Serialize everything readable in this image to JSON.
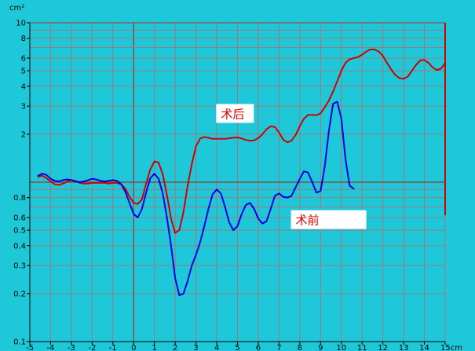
{
  "chart_data": {
    "type": "line",
    "yscale": "log",
    "xlim": [
      -5,
      15
    ],
    "ylim": [
      0.1,
      10
    ],
    "grid": true,
    "xlabel": "",
    "ylabel": "",
    "x_unit": "cm",
    "y_unit": "cm²",
    "xtick_labels": [
      "-5",
      "-4",
      "-3",
      "-2",
      "-1",
      "0",
      "1",
      "2",
      "3",
      "4",
      "5",
      "6",
      "7",
      "8",
      "9",
      "10",
      "11",
      "12",
      "13",
      "14",
      "15cm"
    ],
    "ytick_labels": [
      "0.1",
      "0.2",
      "0.3",
      "0.4",
      "0.5",
      "0.6",
      "0.8",
      "2",
      "3",
      "4",
      "5",
      "6",
      "8",
      "10"
    ],
    "ytick_values": [
      0.1,
      0.2,
      0.3,
      0.4,
      0.5,
      0.6,
      0.8,
      2,
      3,
      4,
      5,
      6,
      8,
      10
    ],
    "series": [
      {
        "name": "术后",
        "color": "#d00000",
        "points": [
          [
            -4.6,
            1.08
          ],
          [
            -4.4,
            1.1
          ],
          [
            -4.2,
            1.06
          ],
          [
            -4.0,
            1.01
          ],
          [
            -3.8,
            0.97
          ],
          [
            -3.6,
            0.96
          ],
          [
            -3.4,
            0.98
          ],
          [
            -3.2,
            1.01
          ],
          [
            -3.0,
            1.03
          ],
          [
            -2.8,
            1.02
          ],
          [
            -2.6,
            0.99
          ],
          [
            -2.4,
            0.98
          ],
          [
            -2.2,
            0.98
          ],
          [
            -2.0,
            0.99
          ],
          [
            -1.8,
            0.99
          ],
          [
            -1.6,
            0.99
          ],
          [
            -1.4,
            0.99
          ],
          [
            -1.2,
            0.98
          ],
          [
            -1.0,
            0.99
          ],
          [
            -0.8,
            0.99
          ],
          [
            -0.6,
            0.97
          ],
          [
            -0.4,
            0.91
          ],
          [
            -0.2,
            0.81
          ],
          [
            0.0,
            0.74
          ],
          [
            0.2,
            0.73
          ],
          [
            0.4,
            0.78
          ],
          [
            0.6,
            0.98
          ],
          [
            0.8,
            1.2
          ],
          [
            1.0,
            1.35
          ],
          [
            1.2,
            1.33
          ],
          [
            1.4,
            1.12
          ],
          [
            1.6,
            0.83
          ],
          [
            1.8,
            0.59
          ],
          [
            2.0,
            0.48
          ],
          [
            2.2,
            0.5
          ],
          [
            2.4,
            0.65
          ],
          [
            2.6,
            0.95
          ],
          [
            2.8,
            1.3
          ],
          [
            3.0,
            1.68
          ],
          [
            3.2,
            1.88
          ],
          [
            3.4,
            1.92
          ],
          [
            3.6,
            1.9
          ],
          [
            3.8,
            1.87
          ],
          [
            4.0,
            1.87
          ],
          [
            4.4,
            1.87
          ],
          [
            4.8,
            1.9
          ],
          [
            5.0,
            1.91
          ],
          [
            5.2,
            1.88
          ],
          [
            5.4,
            1.84
          ],
          [
            5.6,
            1.82
          ],
          [
            5.8,
            1.83
          ],
          [
            6.0,
            1.89
          ],
          [
            6.2,
            2.0
          ],
          [
            6.4,
            2.15
          ],
          [
            6.6,
            2.24
          ],
          [
            6.8,
            2.22
          ],
          [
            7.0,
            2.05
          ],
          [
            7.2,
            1.85
          ],
          [
            7.4,
            1.78
          ],
          [
            7.6,
            1.82
          ],
          [
            7.8,
            1.98
          ],
          [
            8.0,
            2.25
          ],
          [
            8.2,
            2.5
          ],
          [
            8.4,
            2.64
          ],
          [
            8.6,
            2.64
          ],
          [
            8.8,
            2.63
          ],
          [
            9.0,
            2.7
          ],
          [
            9.2,
            2.95
          ],
          [
            9.4,
            3.25
          ],
          [
            9.6,
            3.7
          ],
          [
            9.8,
            4.3
          ],
          [
            10.0,
            5.0
          ],
          [
            10.2,
            5.6
          ],
          [
            10.4,
            5.9
          ],
          [
            10.6,
            6.0
          ],
          [
            10.8,
            6.1
          ],
          [
            11.0,
            6.3
          ],
          [
            11.2,
            6.6
          ],
          [
            11.4,
            6.8
          ],
          [
            11.6,
            6.8
          ],
          [
            11.8,
            6.6
          ],
          [
            12.0,
            6.2
          ],
          [
            12.2,
            5.6
          ],
          [
            12.4,
            5.1
          ],
          [
            12.6,
            4.7
          ],
          [
            12.8,
            4.5
          ],
          [
            13.0,
            4.45
          ],
          [
            13.2,
            4.6
          ],
          [
            13.4,
            5.0
          ],
          [
            13.6,
            5.45
          ],
          [
            13.8,
            5.8
          ],
          [
            14.0,
            5.85
          ],
          [
            14.2,
            5.6
          ],
          [
            14.4,
            5.25
          ],
          [
            14.6,
            5.05
          ],
          [
            14.8,
            5.15
          ],
          [
            15.0,
            5.6
          ]
        ]
      },
      {
        "name": "术前",
        "color": "#0000e0",
        "points": [
          [
            -4.6,
            1.1
          ],
          [
            -4.4,
            1.13
          ],
          [
            -4.2,
            1.11
          ],
          [
            -4.0,
            1.05
          ],
          [
            -3.8,
            1.02
          ],
          [
            -3.6,
            1.01
          ],
          [
            -3.4,
            1.03
          ],
          [
            -3.2,
            1.04
          ],
          [
            -3.0,
            1.03
          ],
          [
            -2.8,
            1.01
          ],
          [
            -2.6,
            1.0
          ],
          [
            -2.4,
            1.01
          ],
          [
            -2.2,
            1.03
          ],
          [
            -2.0,
            1.05
          ],
          [
            -1.8,
            1.04
          ],
          [
            -1.6,
            1.02
          ],
          [
            -1.4,
            1.01
          ],
          [
            -1.2,
            1.02
          ],
          [
            -1.0,
            1.03
          ],
          [
            -0.8,
            1.02
          ],
          [
            -0.6,
            0.97
          ],
          [
            -0.4,
            0.87
          ],
          [
            -0.2,
            0.74
          ],
          [
            0.0,
            0.63
          ],
          [
            0.2,
            0.6
          ],
          [
            0.4,
            0.68
          ],
          [
            0.6,
            0.86
          ],
          [
            0.8,
            1.06
          ],
          [
            1.0,
            1.13
          ],
          [
            1.2,
            1.05
          ],
          [
            1.4,
            0.85
          ],
          [
            1.6,
            0.6
          ],
          [
            1.8,
            0.4
          ],
          [
            2.0,
            0.25
          ],
          [
            2.2,
            0.195
          ],
          [
            2.4,
            0.2
          ],
          [
            2.6,
            0.24
          ],
          [
            2.8,
            0.3
          ],
          [
            3.0,
            0.35
          ],
          [
            3.2,
            0.42
          ],
          [
            3.4,
            0.53
          ],
          [
            3.6,
            0.68
          ],
          [
            3.8,
            0.84
          ],
          [
            4.0,
            0.9
          ],
          [
            4.2,
            0.85
          ],
          [
            4.4,
            0.7
          ],
          [
            4.6,
            0.56
          ],
          [
            4.8,
            0.5
          ],
          [
            5.0,
            0.53
          ],
          [
            5.2,
            0.63
          ],
          [
            5.4,
            0.72
          ],
          [
            5.6,
            0.74
          ],
          [
            5.8,
            0.68
          ],
          [
            6.0,
            0.59
          ],
          [
            6.2,
            0.55
          ],
          [
            6.4,
            0.57
          ],
          [
            6.6,
            0.68
          ],
          [
            6.8,
            0.82
          ],
          [
            7.0,
            0.85
          ],
          [
            7.2,
            0.81
          ],
          [
            7.4,
            0.8
          ],
          [
            7.6,
            0.82
          ],
          [
            7.8,
            0.93
          ],
          [
            8.0,
            1.05
          ],
          [
            8.2,
            1.17
          ],
          [
            8.4,
            1.15
          ],
          [
            8.6,
            1.0
          ],
          [
            8.8,
            0.86
          ],
          [
            9.0,
            0.88
          ],
          [
            9.2,
            1.25
          ],
          [
            9.4,
            2.1
          ],
          [
            9.6,
            3.1
          ],
          [
            9.8,
            3.2
          ],
          [
            10.0,
            2.5
          ],
          [
            10.2,
            1.4
          ],
          [
            10.4,
            0.95
          ],
          [
            10.6,
            0.91
          ]
        ]
      }
    ],
    "annotations": [
      {
        "text": "术后",
        "x": 4.2,
        "y": 2.55,
        "color": "#e00000"
      },
      {
        "text": "术前",
        "x": 7.8,
        "y": 0.55,
        "color": "#e00000"
      }
    ],
    "vertical_marker": {
      "x": 15,
      "y_from": 0.62,
      "y_to": 10,
      "color": "#d00000"
    }
  }
}
